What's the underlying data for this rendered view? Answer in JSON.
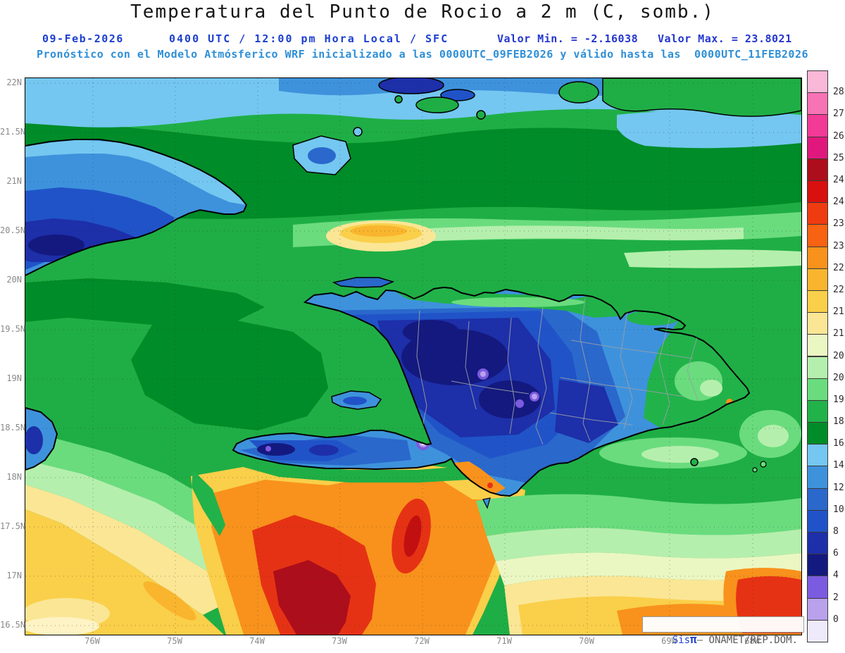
{
  "header": {
    "title": "Temperatura del Punto de Rocio a 2 m (C, somb.)",
    "date": "09-Feb-2026",
    "validity": "0400 UTC / 12:00 pm Hora Local / SFC",
    "valor_min": "Valor Min. = -2.16038",
    "valor_max": "Valor Max. = 23.8021",
    "model_line": "Pronóstico con el Modelo Atmósferico WRF inicializado a las 0000UTC_09FEB2026 y válido hasta las  0000UTC_11FEB2026"
  },
  "axes": {
    "lat_labels": [
      "22N",
      "21.5N",
      "21N",
      "20.5N",
      "20N",
      "19.5N",
      "19N",
      "18.5N",
      "18N",
      "17.5N",
      "17N",
      "16.5N"
    ],
    "lon_labels": [
      "76W",
      "75W",
      "74W",
      "73W",
      "72W",
      "71W",
      "70W",
      "69W",
      "68W"
    ]
  },
  "colorbar": {
    "labels": [
      "28",
      "27",
      "26",
      "25",
      "24.5",
      "24",
      "23.5",
      "23",
      "22.5",
      "22",
      "21.5",
      "21",
      "20.5",
      "20",
      "19",
      "18",
      "16",
      "14",
      "12",
      "10",
      "8",
      "6",
      "4",
      "2",
      "0"
    ],
    "colors": [
      "#F9B8D8",
      "#F773B5",
      "#F23A97",
      "#E0187D",
      "#AD0E1B",
      "#D8100E",
      "#EF3B10",
      "#F76312",
      "#F8921C",
      "#F9B52E",
      "#FACF4A",
      "#FBE695",
      "#EBF7C3",
      "#B5EFAD",
      "#6ADC7E",
      "#22B24A",
      "#008C28",
      "#74C7F0",
      "#3E92DC",
      "#2A68CC",
      "#2053C8",
      "#1D2FA9",
      "#14197F",
      "#7B5BE0",
      "#B9A1EC",
      "#EFEAFB"
    ]
  },
  "watermark": {
    "prefix": "Sis",
    "pi": "π",
    "suffix": "– ONAMET/REP.DOM."
  },
  "chart_data": {
    "type": "heatmap",
    "title": "Temperatura del Punto de Rocio a 2 m (C, somb.)",
    "units": "C",
    "date": "09-Feb-2026",
    "valid_time": "0400 UTC / 12:00 pm Hora Local / SFC",
    "level": "SFC",
    "value_min": -2.16038,
    "value_max": 23.8021,
    "model": "WRF",
    "initialized": "0000UTC_09FEB2026",
    "valid_until": "0000UTC_11FEB2026",
    "lat_ticks": [
      "22N",
      "21.5N",
      "21N",
      "20.5N",
      "20N",
      "19.5N",
      "19N",
      "18.5N",
      "18N",
      "17.5N",
      "17N",
      "16.5N"
    ],
    "lon_ticks": [
      "76W",
      "75W",
      "74W",
      "73W",
      "72W",
      "71W",
      "70W",
      "69W",
      "68W"
    ],
    "levels": [
      28,
      27,
      26,
      25,
      24.5,
      24,
      23.5,
      23,
      22.5,
      22,
      21.5,
      21,
      20.5,
      20,
      19,
      18,
      16,
      14,
      12,
      10,
      8,
      6,
      4,
      2,
      0
    ],
    "palette_top_to_bottom": [
      "#F9B8D8",
      "#F773B5",
      "#F23A97",
      "#E0187D",
      "#AD0E1B",
      "#D8100E",
      "#EF3B10",
      "#F76312",
      "#F8921C",
      "#F9B52E",
      "#FACF4A",
      "#FBE695",
      "#EBF7C3",
      "#B5EFAD",
      "#6ADC7E",
      "#22B24A",
      "#008C28",
      "#74C7F0",
      "#3E92DC",
      "#2A68CC",
      "#2053C8",
      "#1D2FA9",
      "#14197F",
      "#7B5BE0",
      "#B9A1EC",
      "#EFEAFB"
    ],
    "legend_position": "right",
    "region": "Hispaniola / Caribbean (76W-68W, 16.5N-22N)"
  }
}
